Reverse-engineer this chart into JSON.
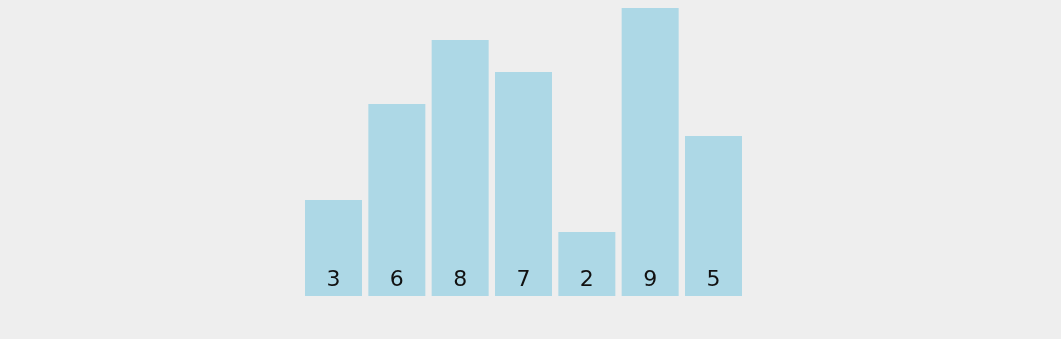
{
  "chart_data": {
    "type": "bar",
    "categories": [
      null,
      null,
      null,
      null,
      null,
      null,
      null
    ],
    "values": [
      3,
      6,
      8,
      7,
      2,
      9,
      5
    ],
    "color": "#add8e6",
    "data_labels": true
  }
}
